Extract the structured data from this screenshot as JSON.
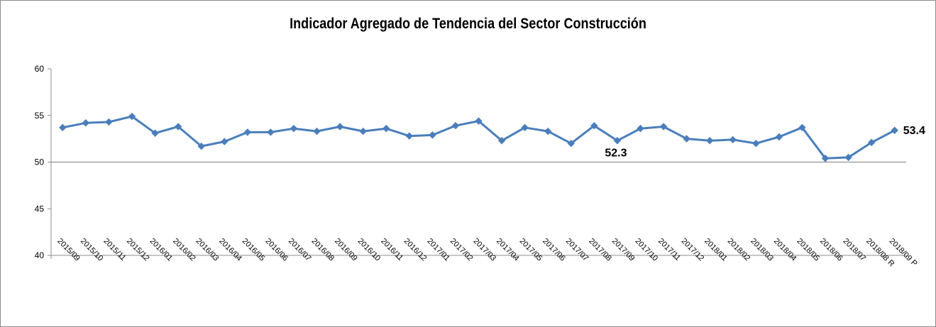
{
  "chart_data": {
    "type": "line",
    "title": "Indicador Agregado de Tendencia del Sector Construcción",
    "xlabel": "",
    "ylabel": "",
    "ylim": [
      40,
      60
    ],
    "yticks": [
      40,
      45,
      50,
      55,
      60
    ],
    "reference_line": 50,
    "grid": false,
    "legend": "none",
    "categories": [
      "2015/09",
      "2015/10",
      "2015/11",
      "2015/12",
      "2016/01",
      "2016/02",
      "2016/03",
      "2016/04",
      "2016/05",
      "2016/06",
      "2016/07",
      "2016/08",
      "2016/09",
      "2016/10",
      "2016/11",
      "2016/12",
      "2017/01",
      "2017/02",
      "2017/03",
      "2017/04",
      "2017/05",
      "2017/06",
      "2017/07",
      "2017/08",
      "2017/09",
      "2017/10",
      "2017/11",
      "2017/12",
      "2018/01",
      "2018/02",
      "2018/03",
      "2018/04",
      "2018/05",
      "2018/06",
      "2018/07",
      "2018/08 R",
      "2018/09 P"
    ],
    "series": [
      {
        "color": "#4a7ebb",
        "values": [
          53.7,
          54.2,
          54.3,
          54.9,
          53.1,
          53.8,
          51.7,
          52.2,
          53.2,
          53.2,
          53.6,
          53.3,
          53.8,
          53.3,
          53.6,
          52.8,
          52.9,
          53.9,
          54.4,
          52.3,
          53.7,
          53.3,
          52.0,
          53.9,
          52.3,
          53.6,
          53.8,
          52.5,
          52.3,
          52.4,
          52.0,
          52.7,
          53.7,
          50.4,
          50.5,
          52.1,
          53.4
        ]
      }
    ],
    "data_labels": [
      {
        "category": "2017/09",
        "text": "52.3"
      },
      {
        "category": "2018/09 P",
        "text": "53.4"
      }
    ]
  }
}
